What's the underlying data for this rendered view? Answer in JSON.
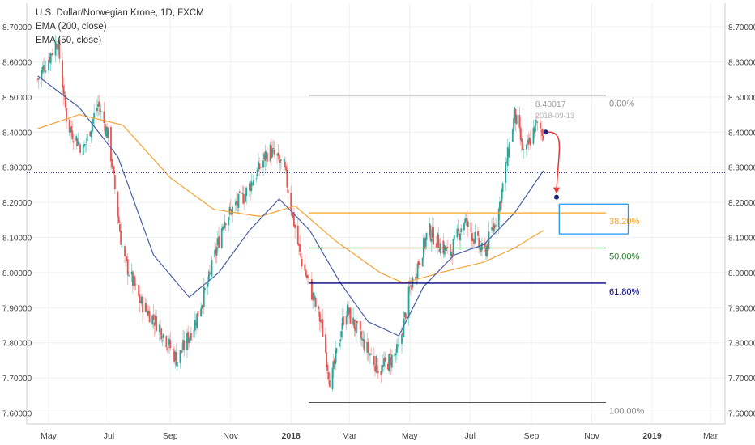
{
  "legend": {
    "title": "U.S. Dollar/Norwegian Krone, 1D, FXCM",
    "ema200": "EMA (200, close)",
    "ema50": "EMA (50, close)"
  },
  "colors": {
    "up": "#26a69a",
    "down": "#ef5350",
    "ema200": "#f7a233",
    "ema50": "#4a5fa3",
    "fib_0": "#555555",
    "fib_382": "#f5a623",
    "fib_50": "#2e7d32",
    "fib_618": "#000080",
    "fib_100": "#555555",
    "hline": "#000080",
    "box": "#2196f3",
    "arrow": "#e53935"
  },
  "chart_data": {
    "type": "candlestick",
    "title": "U.S. Dollar/Norwegian Krone, 1D, FXCM",
    "indicators": [
      "EMA (200, close)",
      "EMA (50, close)"
    ],
    "ylim": [
      7.6,
      8.75
    ],
    "y_ticks": [
      "8.70000",
      "8.60000",
      "8.50000",
      "8.40000",
      "8.30000",
      "8.20000",
      "8.10000",
      "8.00000",
      "7.90000",
      "7.80000",
      "7.70000",
      "7.60000"
    ],
    "x_ticks": [
      "May",
      "Jul",
      "Sep",
      "Nov",
      "2018",
      "Mar",
      "May",
      "Jul",
      "Sep",
      "Nov",
      "2019",
      "Mar"
    ],
    "price_path": [
      [
        "2017-04-20",
        8.55
      ],
      [
        "2017-05-10",
        8.66
      ],
      [
        "2017-05-20",
        8.42
      ],
      [
        "2017-06-05",
        8.35
      ],
      [
        "2017-06-20",
        8.48
      ],
      [
        "2017-07-01",
        8.38
      ],
      [
        "2017-07-15",
        8.05
      ],
      [
        "2017-08-01",
        7.92
      ],
      [
        "2017-08-20",
        7.85
      ],
      [
        "2017-09-08",
        7.75
      ],
      [
        "2017-09-25",
        7.85
      ],
      [
        "2017-10-10",
        7.98
      ],
      [
        "2017-10-25",
        8.15
      ],
      [
        "2017-11-15",
        8.22
      ],
      [
        "2017-12-10",
        8.35
      ],
      [
        "2017-12-25",
        8.3
      ],
      [
        "2018-01-10",
        8.05
      ],
      [
        "2018-02-01",
        7.85
      ],
      [
        "2018-02-10",
        7.68
      ],
      [
        "2018-02-25",
        7.9
      ],
      [
        "2018-03-15",
        7.8
      ],
      [
        "2018-04-01",
        7.72
      ],
      [
        "2018-04-20",
        7.78
      ],
      [
        "2018-05-01",
        7.95
      ],
      [
        "2018-05-20",
        8.12
      ],
      [
        "2018-06-10",
        8.05
      ],
      [
        "2018-06-25",
        8.15
      ],
      [
        "2018-07-15",
        8.05
      ],
      [
        "2018-07-30",
        8.18
      ],
      [
        "2018-08-15",
        8.45
      ],
      [
        "2018-08-25",
        8.33
      ],
      [
        "2018-09-05",
        8.42
      ],
      [
        "2018-09-13",
        8.4
      ]
    ],
    "ema50_path": [
      [
        "2017-04-20",
        8.56
      ],
      [
        "2017-06-01",
        8.47
      ],
      [
        "2017-07-10",
        8.33
      ],
      [
        "2017-08-15",
        8.05
      ],
      [
        "2017-09-20",
        7.93
      ],
      [
        "2017-10-20",
        8.0
      ],
      [
        "2017-11-20",
        8.12
      ],
      [
        "2017-12-20",
        8.21
      ],
      [
        "2018-01-20",
        8.12
      ],
      [
        "2018-02-20",
        7.97
      ],
      [
        "2018-03-20",
        7.86
      ],
      [
        "2018-04-20",
        7.82
      ],
      [
        "2018-05-15",
        7.96
      ],
      [
        "2018-06-15",
        8.05
      ],
      [
        "2018-07-15",
        8.08
      ],
      [
        "2018-08-15",
        8.17
      ],
      [
        "2018-09-13",
        8.29
      ]
    ],
    "ema200_path": [
      [
        "2017-04-20",
        8.41
      ],
      [
        "2017-06-01",
        8.45
      ],
      [
        "2017-07-15",
        8.42
      ],
      [
        "2017-09-01",
        8.27
      ],
      [
        "2017-10-15",
        8.18
      ],
      [
        "2017-12-01",
        8.16
      ],
      [
        "2018-01-05",
        8.19
      ],
      [
        "2018-02-15",
        8.09
      ],
      [
        "2018-04-01",
        8.0
      ],
      [
        "2018-04-25",
        7.97
      ],
      [
        "2018-06-01",
        8.0
      ],
      [
        "2018-07-15",
        8.03
      ],
      [
        "2018-08-15",
        8.07
      ],
      [
        "2018-09-13",
        8.12
      ]
    ],
    "horizontal_line": 8.285,
    "fibonacci": {
      "start": "2018-02-01",
      "end": "2018-10-15",
      "levels": [
        {
          "label": "0.00%",
          "price": 8.505
        },
        {
          "label": "38.20%",
          "price": 8.17
        },
        {
          "label": "50.00%",
          "price": 8.07
        },
        {
          "label": "61.80%",
          "price": 7.97
        },
        {
          "label": "100.00%",
          "price": 7.63
        }
      ]
    },
    "crosshair_tooltip": {
      "price": "8.40017",
      "date": "2018-09-13"
    },
    "projection": {
      "from": [
        "2018-09-13",
        8.4
      ],
      "to": [
        "2018-10-01",
        8.215
      ]
    },
    "target_zone": {
      "start": "2018-09-25",
      "end": "2018-11-01",
      "top": 8.195,
      "bottom": 8.11
    }
  }
}
